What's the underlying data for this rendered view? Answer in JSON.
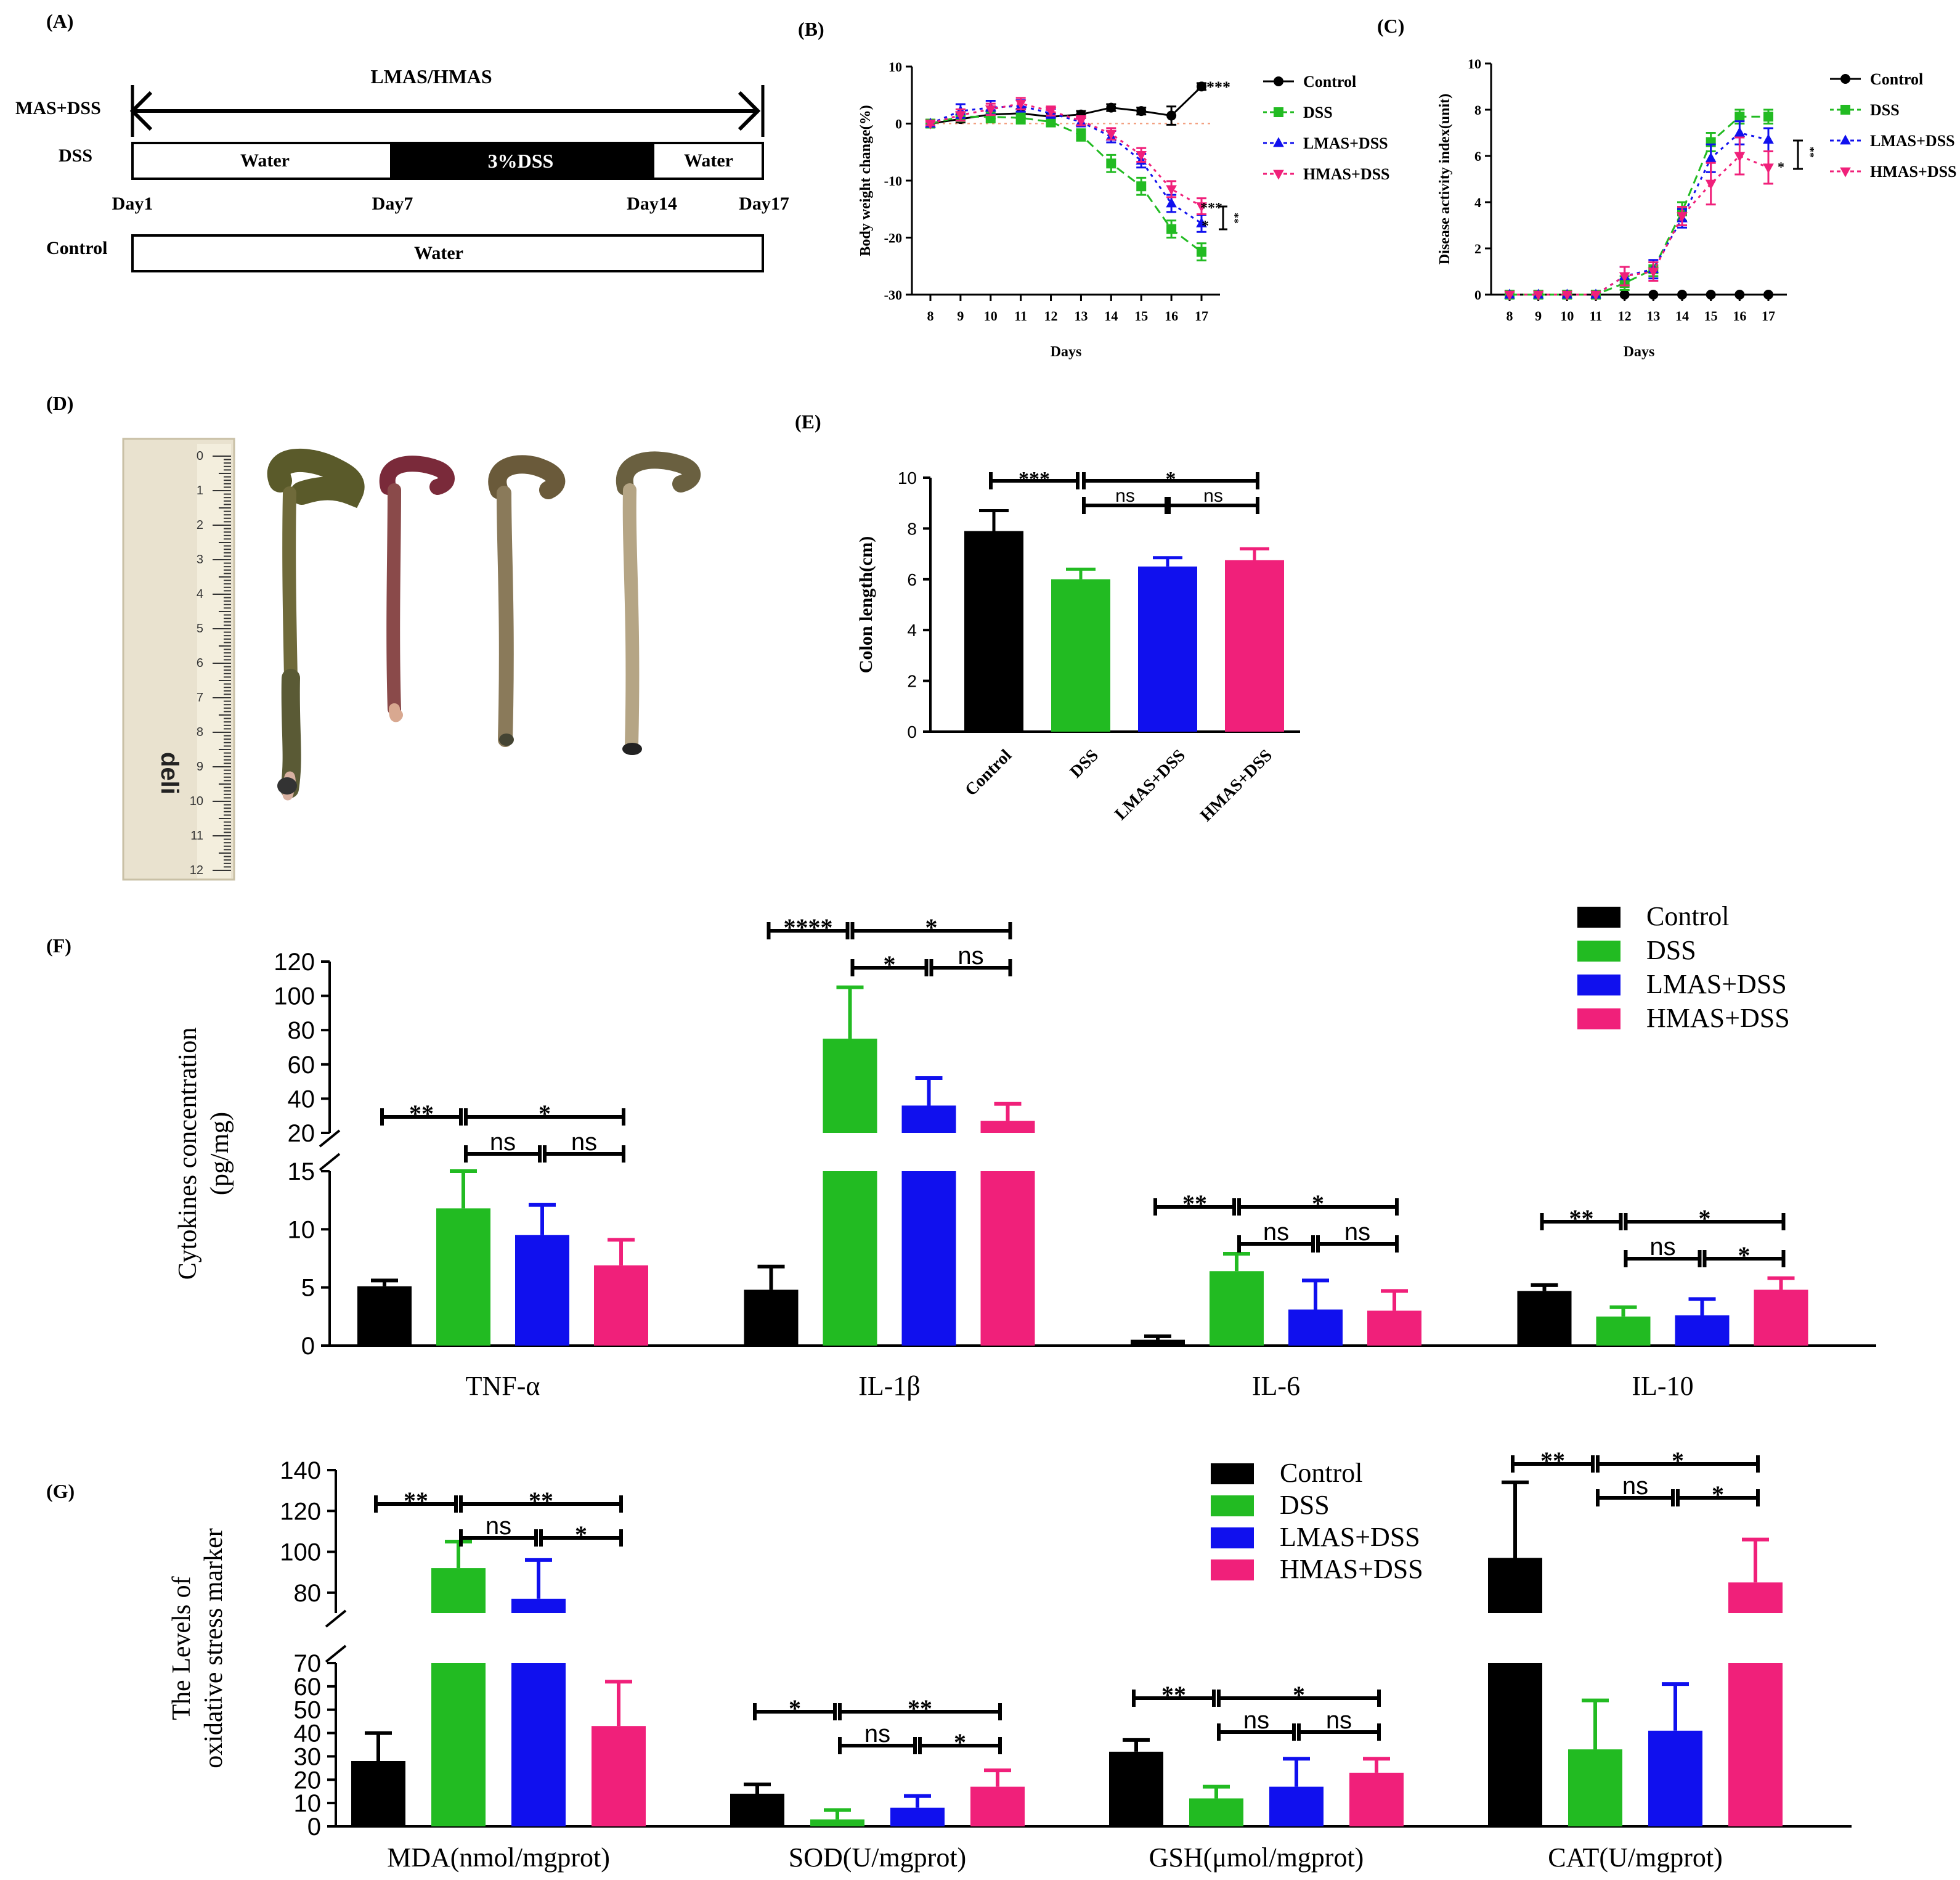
{
  "colors": {
    "control": "#000000",
    "dss": "#22bb22",
    "lmas": "#1010ee",
    "hmas": "#f0207a"
  },
  "panelA": {
    "label": "(A)",
    "arrow_label": "LMAS/HMAS",
    "row1": "MAS+DSS",
    "row2": "DSS",
    "row3": "Control",
    "seg_water1": "Water",
    "seg_dss": "3%DSS",
    "seg_water2": "Water",
    "control_water": "Water",
    "days": [
      "Day1",
      "Day7",
      "Day14",
      "Day17"
    ]
  },
  "panelD": {
    "label": "(D)",
    "ruler_brand": "deli"
  },
  "chart_data": [
    {
      "id": "B",
      "type": "line",
      "label": "(B)",
      "xlabel": "Days",
      "ylabel": "Body weight change(%)",
      "x": [
        8,
        9,
        10,
        11,
        12,
        13,
        14,
        15,
        16,
        17
      ],
      "ylim": [
        -30,
        10
      ],
      "yticks": [
        10,
        0,
        -10,
        -20,
        -30
      ],
      "legend": [
        "Control",
        "DSS",
        "LMAS+DSS",
        "HMAS+DSS"
      ],
      "series": [
        {
          "name": "Control",
          "values": [
            0,
            0.8,
            1.6,
            1.8,
            1.2,
            1.6,
            2.8,
            2.2,
            1.4,
            6.5
          ],
          "err": [
            0.3,
            0.6,
            0.7,
            0.8,
            0.6,
            0.6,
            0.6,
            0.6,
            1.6,
            0.6
          ]
        },
        {
          "name": "DSS",
          "values": [
            0,
            1.2,
            1.2,
            1,
            0.3,
            -2,
            -7,
            -11,
            -18.5,
            -22.5
          ],
          "err": [
            0.3,
            0.8,
            1,
            1,
            0.8,
            1,
            1.5,
            1.5,
            1.5,
            1.5
          ]
        },
        {
          "name": "LMAS+DSS",
          "values": [
            0,
            2.2,
            2.8,
            3.1,
            1.8,
            0.3,
            -2.3,
            -6.5,
            -14,
            -17.5
          ],
          "err": [
            0.3,
            1.2,
            1.2,
            1,
            0.8,
            0.8,
            1,
            1.2,
            1.5,
            1.5
          ]
        },
        {
          "name": "HMAS+DSS",
          "values": [
            0,
            1.5,
            2.5,
            3.5,
            2.2,
            0.5,
            -1.8,
            -5.5,
            -11.5,
            -14.5
          ],
          "err": [
            0.3,
            1,
            1,
            1,
            0.8,
            0.8,
            1,
            1.2,
            1.4,
            1.4
          ]
        }
      ],
      "annotations": [
        "****",
        "***",
        "*",
        "**"
      ]
    },
    {
      "id": "C",
      "type": "line",
      "label": "(C)",
      "xlabel": "Days",
      "ylabel": "Disease activity index(unit)",
      "x": [
        8,
        9,
        10,
        11,
        12,
        13,
        14,
        15,
        16,
        17
      ],
      "ylim": [
        0,
        10
      ],
      "yticks": [
        0,
        2,
        4,
        6,
        8,
        10
      ],
      "legend": [
        "Control",
        "DSS",
        "LMAS+DSS",
        "HMAS+DSS"
      ],
      "series": [
        {
          "name": "Control",
          "values": [
            0,
            0,
            0,
            0,
            0,
            0,
            0,
            0,
            0,
            0
          ],
          "err": [
            0,
            0,
            0,
            0,
            0,
            0,
            0,
            0,
            0,
            0
          ]
        },
        {
          "name": "DSS",
          "values": [
            0,
            0,
            0,
            0,
            0.5,
            1.1,
            3.6,
            6.6,
            7.7,
            7.7
          ],
          "err": [
            0,
            0,
            0,
            0,
            0.3,
            0.3,
            0.4,
            0.4,
            0.3,
            0.3
          ]
        },
        {
          "name": "LMAS+DSS",
          "values": [
            0,
            0,
            0,
            0,
            0.8,
            1.1,
            3.3,
            5.9,
            7.0,
            6.7
          ],
          "err": [
            0,
            0,
            0,
            0,
            0.4,
            0.4,
            0.4,
            0.6,
            0.5,
            0.5
          ]
        },
        {
          "name": "HMAS+DSS",
          "values": [
            0,
            0,
            0,
            0,
            0.8,
            1.0,
            3.4,
            4.8,
            6.0,
            5.5
          ],
          "err": [
            0,
            0,
            0,
            0,
            0.4,
            0.4,
            0.4,
            0.9,
            0.8,
            0.7
          ]
        }
      ],
      "annotations": [
        "*",
        "**"
      ]
    },
    {
      "id": "E",
      "type": "bar",
      "label": "(E)",
      "ylabel": "Colon length(cm)",
      "categories": [
        "Control",
        "DSS",
        "LMAS+DSS",
        "HMAS+DSS"
      ],
      "values": [
        7.9,
        6.0,
        6.5,
        6.75
      ],
      "err": [
        0.8,
        0.4,
        0.35,
        0.45
      ],
      "ylim": [
        0,
        10
      ],
      "yticks": [
        0,
        2,
        4,
        6,
        8,
        10
      ],
      "sig": [
        {
          "from": 0,
          "to": 1,
          "level": 1,
          "text": "***"
        },
        {
          "from": 1,
          "to": 3,
          "level": 1,
          "text": "*"
        },
        {
          "from": 1,
          "to": 2,
          "level": 0,
          "text": "ns"
        },
        {
          "from": 2,
          "to": 3,
          "level": 0,
          "text": "ns"
        }
      ]
    },
    {
      "id": "F",
      "type": "bar",
      "label": "(F)",
      "ylabel": [
        "Cytokines concentration",
        "(pg/mg)"
      ],
      "categories": [
        "TNF-α",
        "IL-1β",
        "IL-6",
        "IL-10"
      ],
      "series": [
        {
          "name": "Control",
          "values": [
            5.1,
            4.8,
            0.5,
            4.7
          ],
          "err": [
            0.5,
            2.0,
            0.3,
            0.5
          ]
        },
        {
          "name": "DSS",
          "values": [
            11.8,
            75,
            6.4,
            2.5
          ],
          "err": [
            3.2,
            30,
            1.5,
            0.8
          ]
        },
        {
          "name": "LMAS+DSS",
          "values": [
            9.5,
            36,
            3.1,
            2.6
          ],
          "err": [
            2.6,
            16,
            2.5,
            1.4
          ]
        },
        {
          "name": "HMAS+DSS",
          "values": [
            6.9,
            27,
            3.0,
            4.8
          ],
          "err": [
            2.2,
            10,
            1.7,
            1.0
          ]
        }
      ],
      "axis_break": {
        "low": [
          0,
          15
        ],
        "high": [
          20,
          120
        ]
      },
      "yticks_low": [
        0,
        5,
        10,
        15
      ],
      "yticks_high": [
        20,
        40,
        60,
        80,
        100,
        120
      ],
      "legend": [
        "Control",
        "DSS",
        "LMAS+DSS",
        "HMAS+DSS"
      ],
      "sig": [
        [
          "**",
          "*",
          "ns",
          "ns"
        ],
        [
          "****",
          "*",
          "*",
          "ns"
        ],
        [
          "**",
          "*",
          "ns",
          "ns"
        ],
        [
          "**",
          "*",
          "ns",
          "*"
        ]
      ]
    },
    {
      "id": "G",
      "type": "bar",
      "label": "(G)",
      "ylabel": [
        "The Levels of",
        "oxidative stress marker"
      ],
      "categories": [
        "MDA(nmol/mgprot)",
        "SOD(U/mgprot)",
        "GSH(μmol/mgprot)",
        "CAT(U/mgprot)"
      ],
      "series": [
        {
          "name": "Control",
          "values": [
            28,
            14,
            32,
            97
          ],
          "err": [
            12,
            4,
            5,
            37
          ]
        },
        {
          "name": "DSS",
          "values": [
            92,
            3,
            12,
            33
          ],
          "err": [
            13,
            4,
            5,
            21
          ]
        },
        {
          "name": "LMAS+DSS",
          "values": [
            77,
            8,
            17,
            41
          ],
          "err": [
            19,
            5,
            12,
            20
          ]
        },
        {
          "name": "HMAS+DSS",
          "values": [
            43,
            17,
            23,
            85
          ],
          "err": [
            19,
            7,
            6,
            21
          ]
        }
      ],
      "axis_break": {
        "low": [
          0,
          70
        ],
        "high": [
          70,
          140
        ]
      },
      "yticks_low": [
        0,
        10,
        20,
        30,
        40,
        50,
        60,
        70
      ],
      "yticks_high": [
        80,
        100,
        120,
        140
      ],
      "legend": [
        "Control",
        "DSS",
        "LMAS+DSS",
        "HMAS+DSS"
      ],
      "sig": [
        [
          "**",
          "**",
          "ns",
          "*"
        ],
        [
          "*",
          "**",
          "ns",
          "*"
        ],
        [
          "**",
          "*",
          "ns",
          "ns"
        ],
        [
          "**",
          "*",
          "ns",
          "*"
        ]
      ]
    }
  ]
}
